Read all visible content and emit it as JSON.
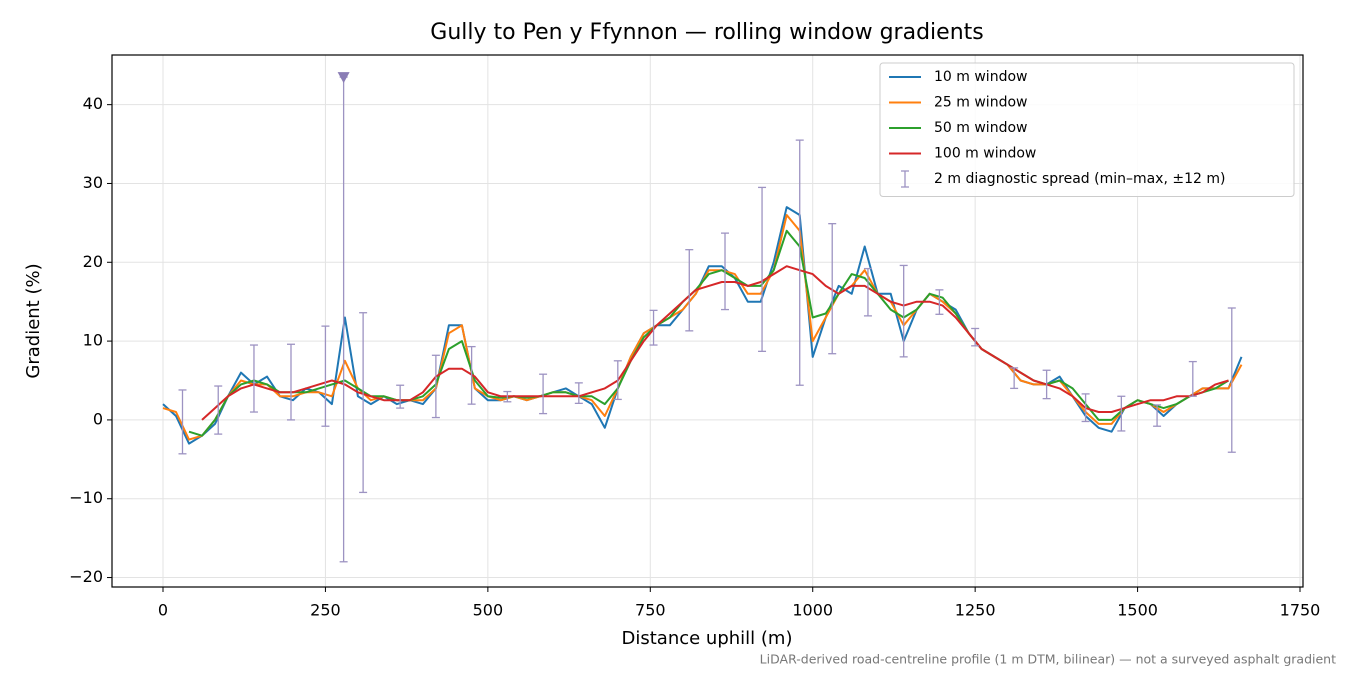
{
  "chart_data": {
    "type": "line",
    "title": "Gully to Pen y Ffynnon — rolling window gradients",
    "x_label": "Distance uphill (m)",
    "y_label": "Gradient (%)",
    "footnote": "LiDAR-derived road-centreline profile (1 m DTM, bilinear) — not a surveyed asphalt gradient",
    "xlim": [
      -78.5,
      1754.6
    ],
    "ylim": [
      -21.2,
      46.3
    ],
    "xticks": [
      0,
      250,
      500,
      750,
      1000,
      1250,
      1500,
      1750
    ],
    "yticks": [
      {
        "value": -20,
        "label": "−20"
      },
      {
        "value": -10,
        "label": "−10"
      },
      0,
      10,
      20,
      30,
      40
    ],
    "grid": true,
    "legend": "upper right",
    "x": [
      0,
      20,
      40,
      60,
      80,
      100,
      120,
      140,
      160,
      180,
      200,
      220,
      240,
      260,
      280,
      300,
      320,
      340,
      360,
      380,
      400,
      420,
      440,
      460,
      480,
      500,
      520,
      540,
      560,
      580,
      600,
      620,
      640,
      660,
      680,
      700,
      720,
      740,
      760,
      780,
      800,
      820,
      840,
      860,
      880,
      900,
      920,
      940,
      960,
      980,
      1000,
      1020,
      1040,
      1060,
      1080,
      1100,
      1120,
      1140,
      1160,
      1180,
      1200,
      1220,
      1240,
      1260,
      1280,
      1300,
      1320,
      1340,
      1360,
      1380,
      1400,
      1420,
      1440,
      1460,
      1480,
      1500,
      1520,
      1540,
      1560,
      1580,
      1600,
      1620,
      1640,
      1660
    ],
    "series": [
      {
        "name": "10 m window",
        "color": "#1f77b4",
        "values": [
          2,
          0.5,
          -3,
          -2,
          -0.5,
          3,
          6,
          4.5,
          5.5,
          3,
          2.5,
          4,
          3.5,
          2,
          13,
          3,
          2,
          3,
          2,
          2.5,
          2,
          4,
          12,
          12,
          4,
          2.5,
          2.5,
          3,
          2.5,
          3,
          3.5,
          4,
          3,
          2,
          -1,
          4,
          8,
          11,
          12,
          12,
          14,
          16,
          19.5,
          19.5,
          18,
          15,
          15,
          20,
          27,
          26,
          8,
          13,
          17,
          16,
          22,
          16,
          16,
          10,
          14,
          16,
          15,
          14,
          11,
          9,
          8,
          7,
          5,
          4.5,
          4.5,
          5.5,
          3,
          0.5,
          -1,
          -1.5,
          1.5,
          2.5,
          2,
          0.5,
          2,
          3,
          4,
          4,
          4,
          8
        ]
      },
      {
        "name": "25 m window",
        "color": "#ff7f0e",
        "values": [
          1.5,
          1,
          -2.5,
          -2,
          0,
          3,
          5,
          4.5,
          4.5,
          3,
          3,
          3.5,
          3.5,
          3,
          7.5,
          4,
          2.5,
          3,
          2.5,
          2.5,
          2.5,
          4,
          11,
          12,
          4,
          3,
          2.5,
          3,
          2.5,
          3,
          3.5,
          3.5,
          3,
          2.5,
          0.5,
          4,
          8,
          11,
          12,
          13,
          14,
          16,
          19,
          19,
          18.5,
          16,
          16,
          19,
          26,
          24,
          10,
          13,
          16,
          17,
          19,
          16,
          15,
          12,
          14,
          16,
          15,
          13.5,
          11,
          9,
          8,
          7,
          5,
          4.5,
          4.5,
          5,
          3,
          1,
          -0.5,
          -0.5,
          1.5,
          2.5,
          2,
          1,
          2,
          3,
          4,
          4,
          4,
          7
        ]
      },
      {
        "name": "50 m window",
        "color": "#2ca02c",
        "values": [
          null,
          null,
          -1.5,
          -2,
          0,
          3,
          4.5,
          5,
          4.5,
          3.5,
          3.5,
          3.5,
          4,
          4.5,
          5,
          4,
          3,
          3,
          2.5,
          2.5,
          3,
          4.5,
          9,
          10,
          5,
          3,
          2.8,
          3,
          2.8,
          3,
          3.5,
          3.5,
          3,
          3,
          2,
          4,
          7.5,
          10.5,
          12,
          13,
          15,
          16.5,
          18.5,
          19,
          18,
          17,
          17,
          19,
          24,
          22,
          13,
          13.5,
          16,
          18.5,
          18,
          16,
          14,
          13,
          14,
          16,
          15.5,
          13.5,
          11,
          9,
          8,
          7,
          6,
          5,
          4.5,
          5,
          4,
          2,
          0,
          0,
          1.5,
          2.5,
          2,
          1.5,
          2,
          3,
          3.5,
          4,
          5,
          null
        ]
      },
      {
        "name": "100 m window",
        "color": "#d62728",
        "values": [
          null,
          null,
          null,
          0,
          1.5,
          3,
          4,
          4.5,
          4,
          3.5,
          3.5,
          4,
          4.5,
          5,
          4.5,
          3.5,
          3,
          2.5,
          2.5,
          2.5,
          3.5,
          5.5,
          6.5,
          6.5,
          5.5,
          3.5,
          3,
          3,
          3,
          3,
          3,
          3,
          3,
          3.5,
          4,
          5,
          7.5,
          10,
          12,
          13.5,
          15,
          16.5,
          17,
          17.5,
          17.5,
          17,
          17.5,
          18.5,
          19.5,
          19,
          18.5,
          17,
          16,
          17,
          17,
          16,
          15,
          14.5,
          15,
          15,
          14.5,
          13,
          11,
          9,
          8,
          7,
          6,
          5,
          4.5,
          4,
          3,
          1.5,
          1,
          1,
          1.5,
          2,
          2.5,
          2.5,
          3,
          3,
          3.5,
          4.5,
          5,
          null
        ]
      }
    ],
    "errorbars": {
      "name": "2 m diagnostic spread (min–max, ±12 m)",
      "color": "#9d93c2",
      "points": [
        {
          "x": 30,
          "low": -4.3,
          "high": 3.8
        },
        {
          "x": 85,
          "low": -1.8,
          "high": 4.3
        },
        {
          "x": 140,
          "low": 1,
          "high": 9.5
        },
        {
          "x": 197,
          "low": 0,
          "high": 9.6
        },
        {
          "x": 250,
          "low": -0.8,
          "high": 11.9
        },
        {
          "x": 278,
          "low": -18,
          "high": 43.5,
          "marker": "v"
        },
        {
          "x": 308,
          "low": -9.2,
          "high": 13.6
        },
        {
          "x": 365,
          "low": 1.5,
          "high": 4.4
        },
        {
          "x": 420,
          "low": 0.3,
          "high": 8.2
        },
        {
          "x": 475,
          "low": 2,
          "high": 9.3
        },
        {
          "x": 530,
          "low": 2.3,
          "high": 3.6
        },
        {
          "x": 585,
          "low": 0.8,
          "high": 5.8
        },
        {
          "x": 640,
          "low": 2.1,
          "high": 4.7
        },
        {
          "x": 700,
          "low": 2.6,
          "high": 7.5
        },
        {
          "x": 755,
          "low": 9.5,
          "high": 13.9
        },
        {
          "x": 810,
          "low": 11.3,
          "high": 21.6
        },
        {
          "x": 865,
          "low": 14,
          "high": 23.7
        },
        {
          "x": 922,
          "low": 8.7,
          "high": 29.5
        },
        {
          "x": 980,
          "low": 4.4,
          "high": 35.5
        },
        {
          "x": 1030,
          "low": 8.4,
          "high": 24.9
        },
        {
          "x": 1085,
          "low": 13.2,
          "high": 19.2
        },
        {
          "x": 1140,
          "low": 8,
          "high": 19.6
        },
        {
          "x": 1195,
          "low": 13.4,
          "high": 16.5
        },
        {
          "x": 1250,
          "low": 9.4,
          "high": 11.6
        },
        {
          "x": 1310,
          "low": 4,
          "high": 6.6
        },
        {
          "x": 1360,
          "low": 2.7,
          "high": 6.3
        },
        {
          "x": 1420,
          "low": -0.2,
          "high": 3.3
        },
        {
          "x": 1475,
          "low": -1.4,
          "high": 3
        },
        {
          "x": 1530,
          "low": -0.8,
          "high": 1.9
        },
        {
          "x": 1585,
          "low": 3,
          "high": 7.4
        },
        {
          "x": 1645,
          "low": -4.1,
          "high": 14.2
        }
      ]
    }
  }
}
